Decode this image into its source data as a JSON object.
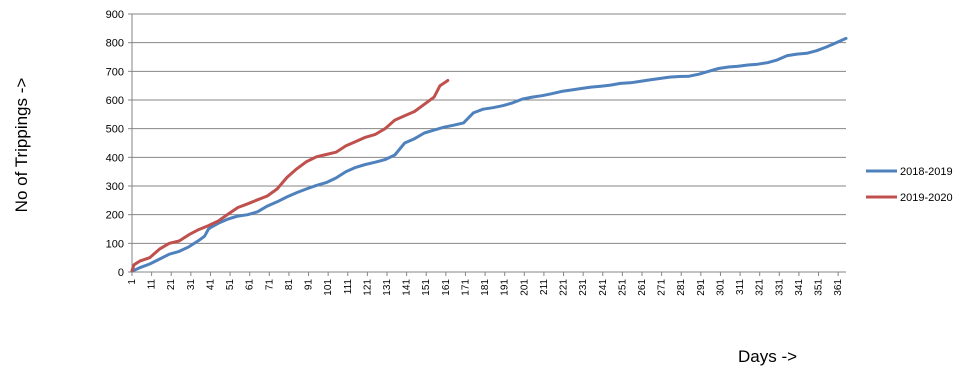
{
  "chart_data": {
    "type": "line",
    "title": "",
    "xlabel": "Days ->",
    "ylabel": "No of Trippings ->",
    "xlim": [
      1,
      365
    ],
    "ylim": [
      0,
      900
    ],
    "y_ticks": [
      0,
      100,
      200,
      300,
      400,
      500,
      600,
      700,
      800,
      900
    ],
    "x_ticks": [
      1,
      11,
      21,
      31,
      41,
      51,
      61,
      71,
      81,
      91,
      101,
      111,
      121,
      131,
      141,
      151,
      161,
      171,
      181,
      191,
      201,
      211,
      221,
      231,
      241,
      251,
      261,
      271,
      281,
      291,
      301,
      311,
      321,
      331,
      341,
      351,
      361
    ],
    "grid": "horizontal",
    "legend_position": "right",
    "series": [
      {
        "name": "2018-2019",
        "color": "#4f81bd",
        "x": [
          1,
          5,
          10,
          15,
          20,
          25,
          30,
          35,
          38,
          40,
          41,
          45,
          50,
          55,
          60,
          65,
          70,
          75,
          80,
          85,
          90,
          95,
          100,
          105,
          110,
          115,
          120,
          125,
          130,
          135,
          140,
          145,
          150,
          155,
          160,
          165,
          170,
          175,
          180,
          185,
          190,
          195,
          200,
          205,
          210,
          215,
          220,
          225,
          230,
          235,
          240,
          245,
          250,
          255,
          260,
          265,
          270,
          275,
          280,
          285,
          290,
          295,
          300,
          305,
          310,
          315,
          320,
          325,
          330,
          335,
          340,
          345,
          350,
          355,
          360,
          365
        ],
        "y": [
          3,
          15,
          28,
          45,
          62,
          72,
          88,
          110,
          125,
          150,
          155,
          170,
          185,
          195,
          200,
          210,
          230,
          245,
          262,
          277,
          290,
          302,
          312,
          328,
          350,
          365,
          375,
          383,
          392,
          408,
          450,
          465,
          485,
          495,
          505,
          512,
          520,
          555,
          568,
          573,
          580,
          590,
          603,
          610,
          615,
          622,
          630,
          635,
          640,
          645,
          648,
          652,
          658,
          660,
          665,
          670,
          675,
          680,
          682,
          683,
          690,
          700,
          710,
          715,
          718,
          722,
          725,
          730,
          740,
          755,
          760,
          763,
          772,
          785,
          800,
          815
        ]
      },
      {
        "name": "2019-2020",
        "color": "#c0504d",
        "x": [
          1,
          2,
          5,
          10,
          15,
          20,
          25,
          30,
          35,
          40,
          45,
          50,
          55,
          60,
          65,
          70,
          75,
          80,
          85,
          90,
          95,
          100,
          105,
          110,
          115,
          120,
          125,
          130,
          135,
          140,
          145,
          150,
          155,
          158,
          162
        ],
        "y": [
          5,
          25,
          38,
          50,
          80,
          100,
          108,
          130,
          148,
          162,
          178,
          202,
          225,
          238,
          252,
          265,
          290,
          330,
          360,
          385,
          402,
          410,
          418,
          440,
          455,
          470,
          480,
          500,
          530,
          545,
          560,
          585,
          610,
          650,
          668
        ]
      }
    ]
  }
}
